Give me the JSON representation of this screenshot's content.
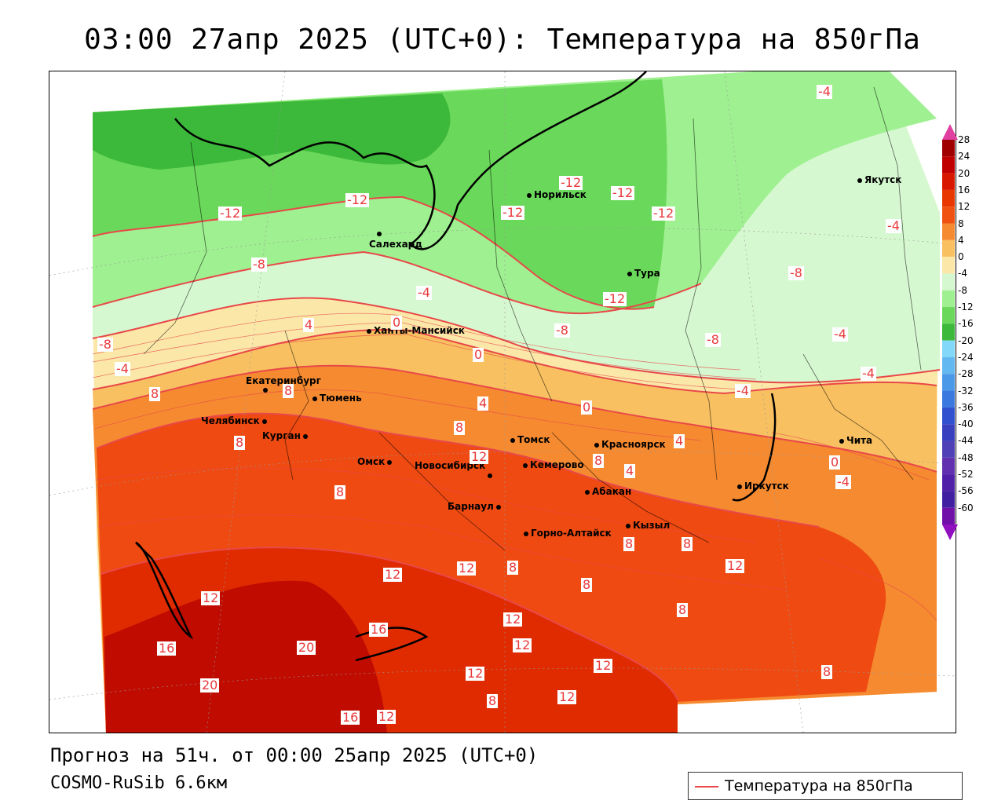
{
  "title": "03:00 27апр 2025 (UTC+0): Температура на 850гПа",
  "footer": {
    "forecast": "Прогноз на 51ч. от 00:00 25апр 2025 (UTC+0)",
    "model": "COSMO-RuSib 6.6км"
  },
  "legend": {
    "label": "Температура на 850гПа",
    "line_color": "#e8484a"
  },
  "color_scale": {
    "labels": [
      "28",
      "24",
      "20",
      "16",
      "12",
      "8",
      "4",
      "0",
      "-4",
      "-8",
      "-12",
      "-16",
      "-20",
      "-24",
      "-28",
      "-32",
      "-36",
      "-40",
      "-44",
      "-48",
      "-52",
      "-56",
      "-60"
    ],
    "colors": [
      "#a00000",
      "#c00000",
      "#d81800",
      "#e83800",
      "#f05010",
      "#f58a30",
      "#f8c060",
      "#fbe8a8",
      "#d6f8d0",
      "#9ef090",
      "#6ad85a",
      "#3cb83a",
      "#82d8f8",
      "#62b8f0",
      "#4a98e8",
      "#3a78e0",
      "#3050d0",
      "#3840c0",
      "#5040b8",
      "#6030b0",
      "#5020a8",
      "#4020a0",
      "#7010a8"
    ]
  },
  "cities": [
    {
      "name": "Якутск"
    },
    {
      "name": "Норильск"
    },
    {
      "name": "Салехард"
    },
    {
      "name": "Тура"
    },
    {
      "name": "Ханты-Мансийск"
    },
    {
      "name": "Екатеринбург"
    },
    {
      "name": "Тюмень"
    },
    {
      "name": "Челябинск"
    },
    {
      "name": "Курган"
    },
    {
      "name": "Омск"
    },
    {
      "name": "Новосибирск"
    },
    {
      "name": "Томск"
    },
    {
      "name": "Кемерово"
    },
    {
      "name": "Красноярск"
    },
    {
      "name": "Абакан"
    },
    {
      "name": "Барнаул"
    },
    {
      "name": "Горно-Алтайск"
    },
    {
      "name": "Кызыл"
    },
    {
      "name": "Иркутск"
    },
    {
      "name": "Чита"
    }
  ],
  "contour_labels": [
    "-4",
    "-12",
    "-12",
    "-12",
    "-12",
    "-12",
    "-12",
    "-4",
    "-8",
    "-8",
    "-4",
    "-12",
    "-4",
    "-8",
    "-8",
    "-4",
    "-4",
    "-8",
    "0",
    "-4",
    "-4",
    "0",
    "8",
    "8",
    "4",
    "0",
    "4",
    "8",
    "8",
    "12",
    "8",
    "4",
    "0",
    "4",
    "8",
    "12",
    "8",
    "8",
    "8",
    "12",
    "12",
    "12",
    "8",
    "12",
    "16",
    "20",
    "16",
    "20",
    "12",
    "12",
    "16",
    "12",
    "8",
    "12",
    "12",
    "8",
    "8"
  ]
}
